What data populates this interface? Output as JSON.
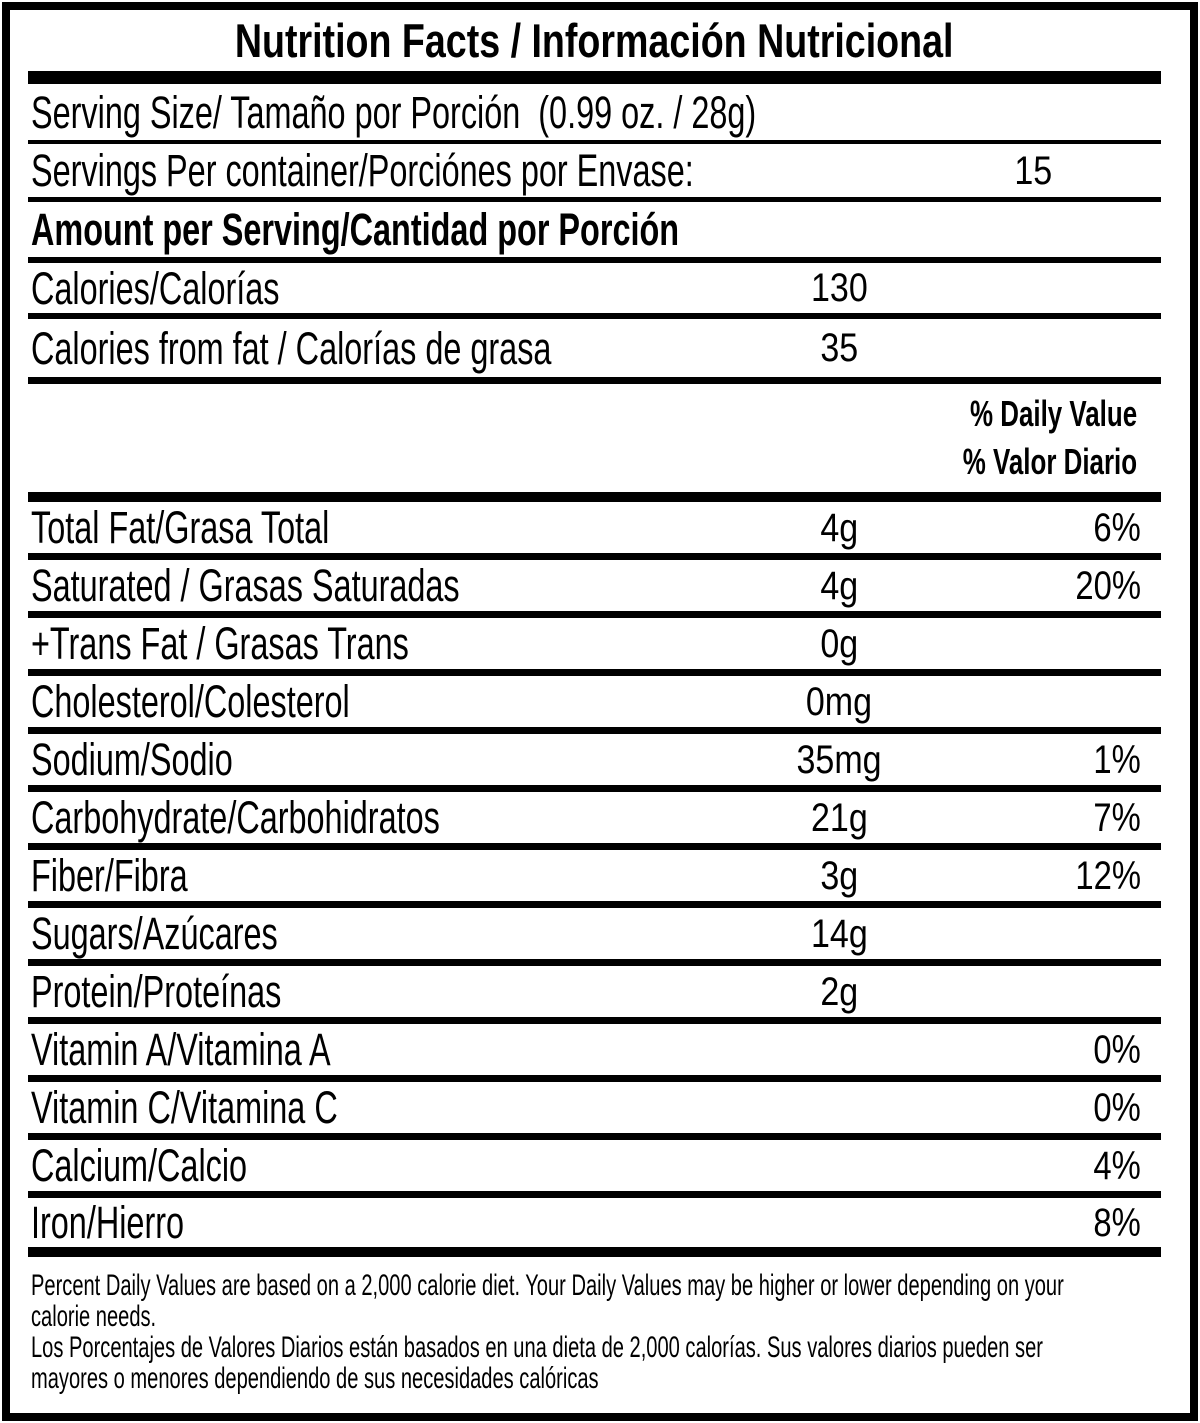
{
  "colors": {
    "ink": "#000000",
    "paper": "#ffffff"
  },
  "title": "Nutrition Facts / Información Nutricional",
  "serving": {
    "size_label": "Serving Size/ Tamaño por Porción  (0.99 oz. / 28g)",
    "per_container_label": "Servings Per container/Porciónes por Envase:",
    "per_container_value": "15"
  },
  "amount_per_serving_label": "Amount per Serving/Cantidad por Porción",
  "calories": {
    "label": "Calories/Calorías",
    "value": "130"
  },
  "calories_from_fat": {
    "label": "Calories from fat / Calorías de grasa",
    "value": "35"
  },
  "daily_value_header": {
    "en": "% Daily Value",
    "es": "% Valor Diario"
  },
  "nutrients": [
    {
      "label": "Total Fat/Grasa Total",
      "amount": "4g",
      "dv": "6%"
    },
    {
      "label": "Saturated / Grasas Saturadas",
      "amount": "4g",
      "dv": "20%"
    },
    {
      "label": "+Trans Fat / Grasas Trans",
      "amount": "0g",
      "dv": ""
    },
    {
      "label": "Cholesterol/Colesterol",
      "amount": "0mg",
      "dv": ""
    },
    {
      "label": "Sodium/Sodio",
      "amount": "35mg",
      "dv": "1%"
    },
    {
      "label": "Carbohydrate/Carbohidratos",
      "amount": "21g",
      "dv": "7%"
    },
    {
      "label": "Fiber/Fibra",
      "amount": "3g",
      "dv": "12%"
    },
    {
      "label": "Sugars/Azúcares",
      "amount": "14g",
      "dv": ""
    },
    {
      "label": "Protein/Proteínas",
      "amount": "2g",
      "dv": ""
    },
    {
      "label": "Vitamin A/Vitamina A",
      "amount": "",
      "dv": "0%"
    },
    {
      "label": "Vitamin C/Vitamina C",
      "amount": "",
      "dv": "0%"
    },
    {
      "label": "Calcium/Calcio",
      "amount": "",
      "dv": "4%"
    },
    {
      "label": "Iron/Hierro",
      "amount": "",
      "dv": "8%"
    }
  ],
  "footnote": {
    "en_lines": [
      "Percent Daily Values are based on a 2,000 calorie diet. Your Daily Values may be higher or lower depending on your",
      "calorie needs."
    ],
    "es_lines": [
      "Los Porcentajes de Valores Diarios están basados en una dieta de 2,000 calorías. Sus valores diarios pueden ser",
      "mayores o menores dependiendo de sus necesidades calóricas"
    ]
  }
}
